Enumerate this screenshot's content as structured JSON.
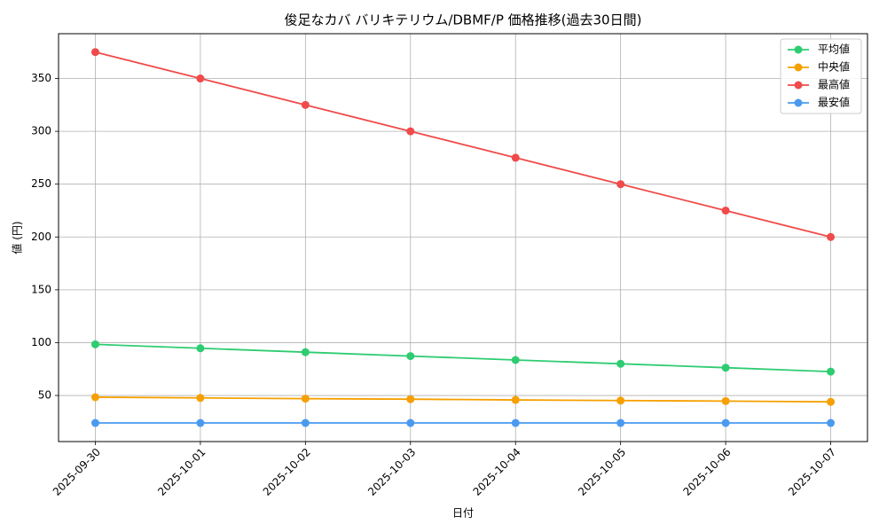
{
  "chart_data": {
    "type": "line",
    "title": "俊足なカバ バリキテリウム/DBMF/P 価格推移(過去30日間)",
    "x_label": "日付",
    "y_label": "値 (円)",
    "categories": [
      "2025-09-30",
      "2025-10-01",
      "2025-10-02",
      "2025-10-03",
      "2025-10-04",
      "2025-10-05",
      "2025-10-06",
      "2025-10-07"
    ],
    "series": [
      {
        "name": "平均値",
        "color": "#2ecc71",
        "values": [
          98.4,
          94.7,
          91.0,
          87.3,
          83.6,
          80.0,
          76.3,
          72.6
        ]
      },
      {
        "name": "中央値",
        "color": "#f5a000",
        "values": [
          48.4,
          47.7,
          47.0,
          46.5,
          45.8,
          45.2,
          44.7,
          44.0
        ]
      },
      {
        "name": "最高値",
        "color": "#f04a4a",
        "values": [
          375,
          350,
          325,
          300,
          275,
          250,
          225,
          200
        ]
      },
      {
        "name": "最安値",
        "color": "#4a9af0",
        "values": [
          24,
          24,
          24,
          24,
          24,
          24,
          24,
          24
        ]
      }
    ],
    "ylim": [
      6.4,
      392.4
    ],
    "yticks": [
      50,
      100,
      150,
      200,
      250,
      300,
      350
    ],
    "grid": true,
    "legend": "upper right"
  }
}
